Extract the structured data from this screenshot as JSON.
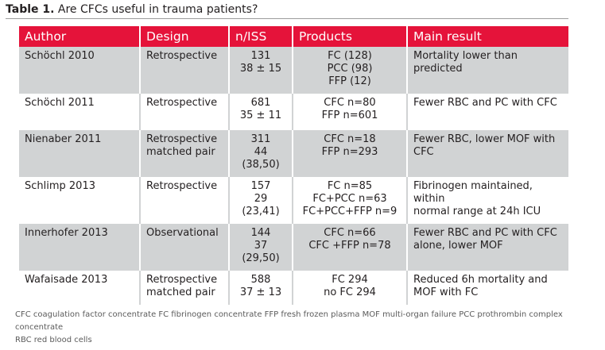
{
  "caption": {
    "label": "Table 1.",
    "text": " Are CFCs useful in trauma patients?"
  },
  "table": {
    "headers": [
      "Author",
      "Design",
      "n/ISS",
      "Products",
      "Main result"
    ],
    "rows": [
      {
        "author": "Schöchl 2010",
        "design": [
          "Retrospective"
        ],
        "niss": [
          "131",
          "38 ± 15"
        ],
        "products": [
          "FC (128)",
          "PCC (98)",
          "FFP (12)"
        ],
        "result": [
          "Mortality lower than predicted"
        ]
      },
      {
        "author": "Schöchl 2011",
        "design": [
          "Retrospective"
        ],
        "niss": [
          "681",
          "35 ± 11"
        ],
        "products": [
          "CFC n=80",
          "FFP n=601"
        ],
        "result": [
          "Fewer RBC and PC with CFC"
        ]
      },
      {
        "author": "Nienaber 2011",
        "design": [
          "Retrospective",
          "matched pair"
        ],
        "niss": [
          "311",
          "44",
          "(38,50)"
        ],
        "products": [
          "CFC n=18",
          "FFP n=293"
        ],
        "result": [
          "Fewer RBC, lower MOF with",
          "CFC"
        ]
      },
      {
        "author": "Schlimp 2013",
        "design": [
          "Retrospective"
        ],
        "niss": [
          "157",
          "29",
          "(23,41)"
        ],
        "products": [
          "FC n=85",
          "FC+PCC n=63",
          "FC+PCC+FFP n=9"
        ],
        "result": [
          "Fibrinogen maintained, within",
          "normal range at 24h ICU"
        ]
      },
      {
        "author": "Innerhofer 2013",
        "design": [
          "Observational"
        ],
        "niss": [
          "144",
          "37",
          "(29,50)"
        ],
        "products": [
          "CFC n=66",
          "CFC +FFP n=78"
        ],
        "result": [
          "Fewer RBC and PC with CFC",
          "alone, lower MOF"
        ]
      },
      {
        "author": "Wafaisade 2013",
        "design": [
          "Retrospective",
          "matched pair"
        ],
        "niss": [
          "588",
          "37 ± 13"
        ],
        "products": [
          "FC 294",
          "no FC 294"
        ],
        "result": [
          "Reduced 6h mortality and",
          "MOF with FC"
        ]
      }
    ]
  },
  "footnote": {
    "line1": "CFC coagulation factor concentrate FC fibrinogen concentrate FFP fresh frozen plasma MOF multi-organ failure PCC prothrombin complex concentrate",
    "line2": "RBC red blood cells"
  }
}
